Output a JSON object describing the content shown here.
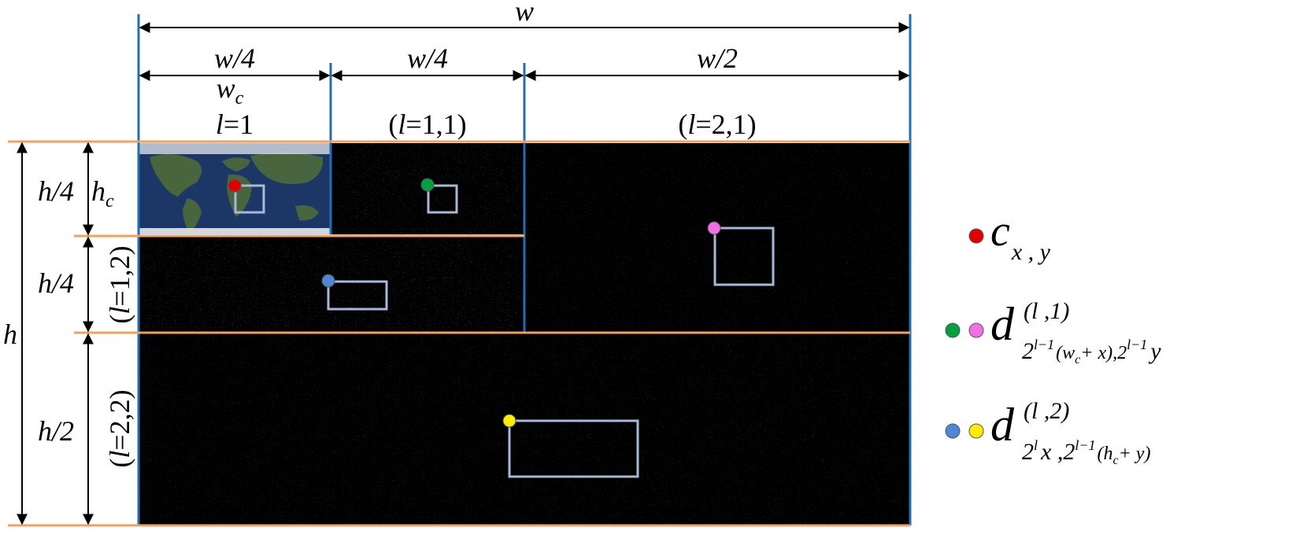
{
  "colors": {
    "vertical_guides": "#1f6fb7",
    "horizontal_guides": "#f0a060",
    "box": "#a9b8d8",
    "point_c": "#e00000",
    "point_d_l1": "#00a040",
    "point_d_l2": "#f070e8",
    "point_d_v1": "#4f86d8",
    "point_d_v2": "#ffee00"
  },
  "dims": {
    "w": "w",
    "w4a": "w/4",
    "w4b": "w/4",
    "w2": "w/2",
    "wc": "w",
    "wc_sub": "c",
    "h": "h",
    "h4a": "h/4",
    "hc": "h",
    "hc_sub": "c",
    "h4b": "h/4",
    "h2": "h/2"
  },
  "tiles": {
    "approx": {
      "l": "l",
      "eq": "=1"
    },
    "l11": {
      "open": "(",
      "l": "l",
      "rest": "=1,1)"
    },
    "l21": {
      "open": "(",
      "l": "l",
      "rest": "=2,1)"
    },
    "l12": {
      "open": "(",
      "l": "l",
      "rest": "=1,2)"
    },
    "l22": {
      "open": "(",
      "l": "l",
      "rest": "=2,2)"
    }
  },
  "legend": {
    "c": {
      "main": "c",
      "sub": "x , y"
    },
    "d1": {
      "main": "d",
      "sup": "(l ,1)",
      "sub_a": "2",
      "sub_a_sup": "l−1",
      "sub_b": "(w",
      "sub_b_sub": "c",
      "sub_c": "+ x),2",
      "sub_c_sup": "l−1",
      "sub_d": "y"
    },
    "d2": {
      "main": "d",
      "sup": "(l ,2)",
      "sub_a": "2",
      "sub_a_sup": "l",
      "sub_b": "x ,2",
      "sub_b_sup": "l−1",
      "sub_c": "(h",
      "sub_c_sub": "c",
      "sub_d": "+ y)"
    }
  }
}
